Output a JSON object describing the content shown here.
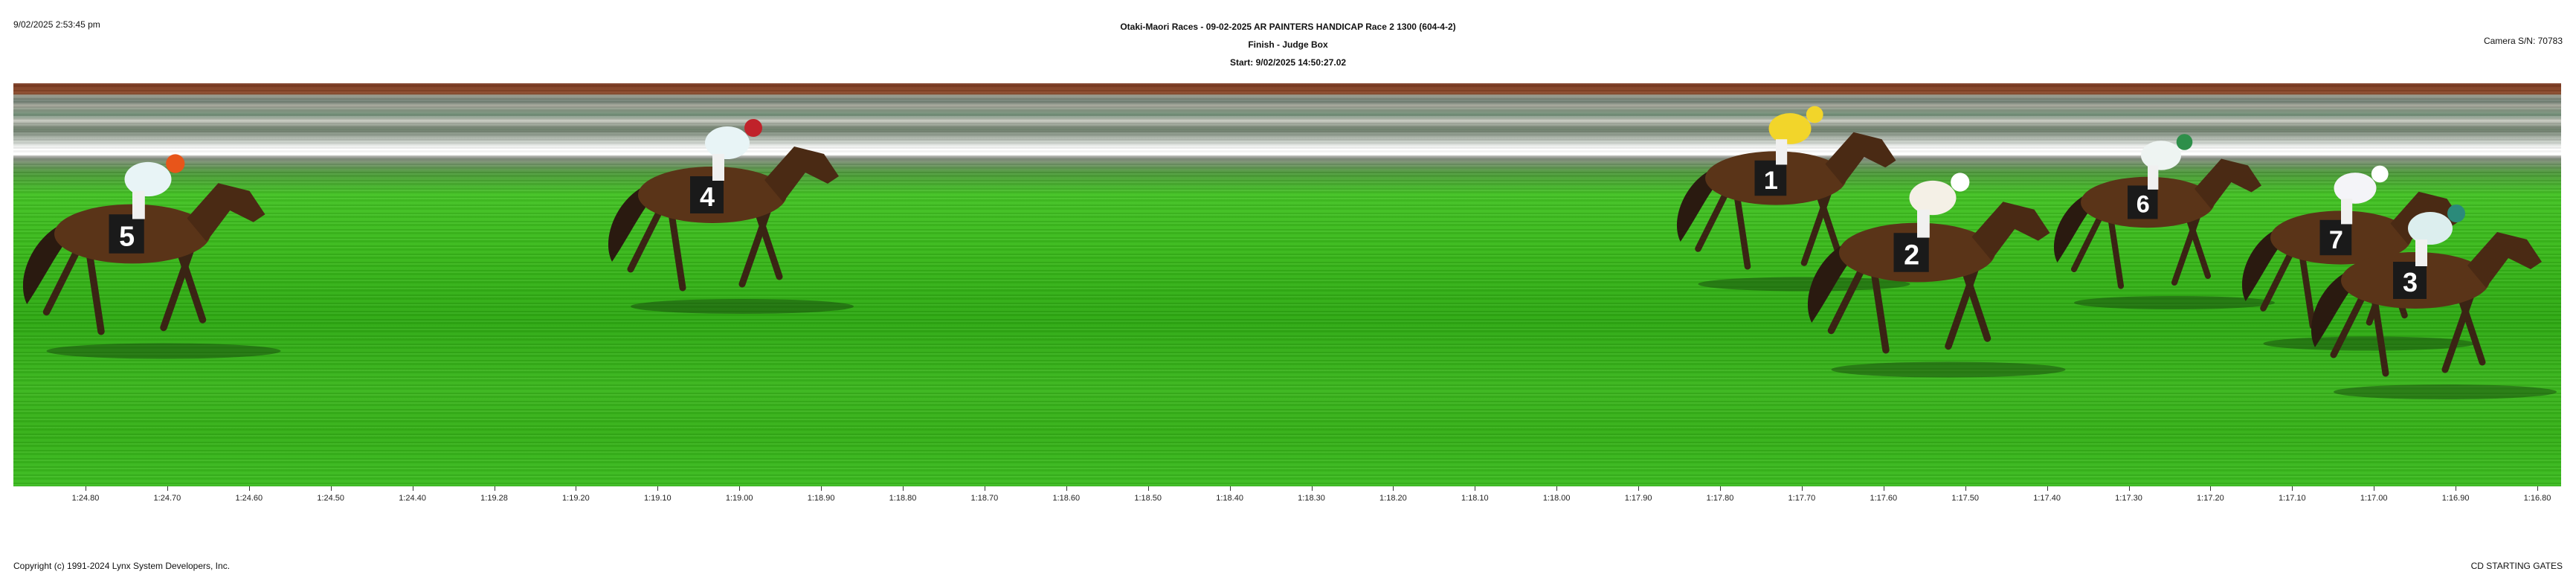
{
  "timestamp": "9/02/2025 2:53:45 pm",
  "header": {
    "race_line": "Otaki-Maori Races - 09-02-2025 AR PAINTERS HANDICAP Race 2 1300 (604-4-2)",
    "finish_line": "Finish - Judge Box",
    "start_line": "Start: 9/02/2025 14:50:27.02"
  },
  "camera": "Camera S/N: 70783",
  "footer": {
    "copyright": "Copyright (c) 1991-2024 Lynx System Developers, Inc.",
    "gates": "CD STARTING GATES"
  },
  "ticks": [
    "1:24.80",
    "1:24.70",
    "1:24.60",
    "1:24.50",
    "1:24.40",
    "1:19.28",
    "1:19.20",
    "1:19.10",
    "1:19.00",
    "1:18.90",
    "1:18.80",
    "1:18.70",
    "1:18.60",
    "1:18.50",
    "1:18.40",
    "1:18.30",
    "1:18.20",
    "1:18.10",
    "1:18.00",
    "1:17.90",
    "1:17.80",
    "1:17.70",
    "1:17.60",
    "1:17.50",
    "1:17.40",
    "1:17.30",
    "1:17.20",
    "1:17.10",
    "1:17.00",
    "1:16.90",
    "1:16.80"
  ],
  "horses": [
    {
      "number": "5",
      "silks": "#e8f4f6",
      "cap": "#e8551a"
    },
    {
      "number": "4",
      "silks": "#e8f4f6",
      "cap": "#c0222a"
    },
    {
      "number": "1",
      "silks": "#f2d52a",
      "cap": "#f2d52a"
    },
    {
      "number": "2",
      "silks": "#f4f0e6",
      "cap": "#ffffff"
    },
    {
      "number": "6",
      "silks": "#eef4f2",
      "cap": "#2e8f4a"
    },
    {
      "number": "7",
      "silks": "#f4f4f8",
      "cap": "#ffffff"
    },
    {
      "number": "3",
      "silks": "#dceeee",
      "cap": "#2b8a7a"
    }
  ]
}
